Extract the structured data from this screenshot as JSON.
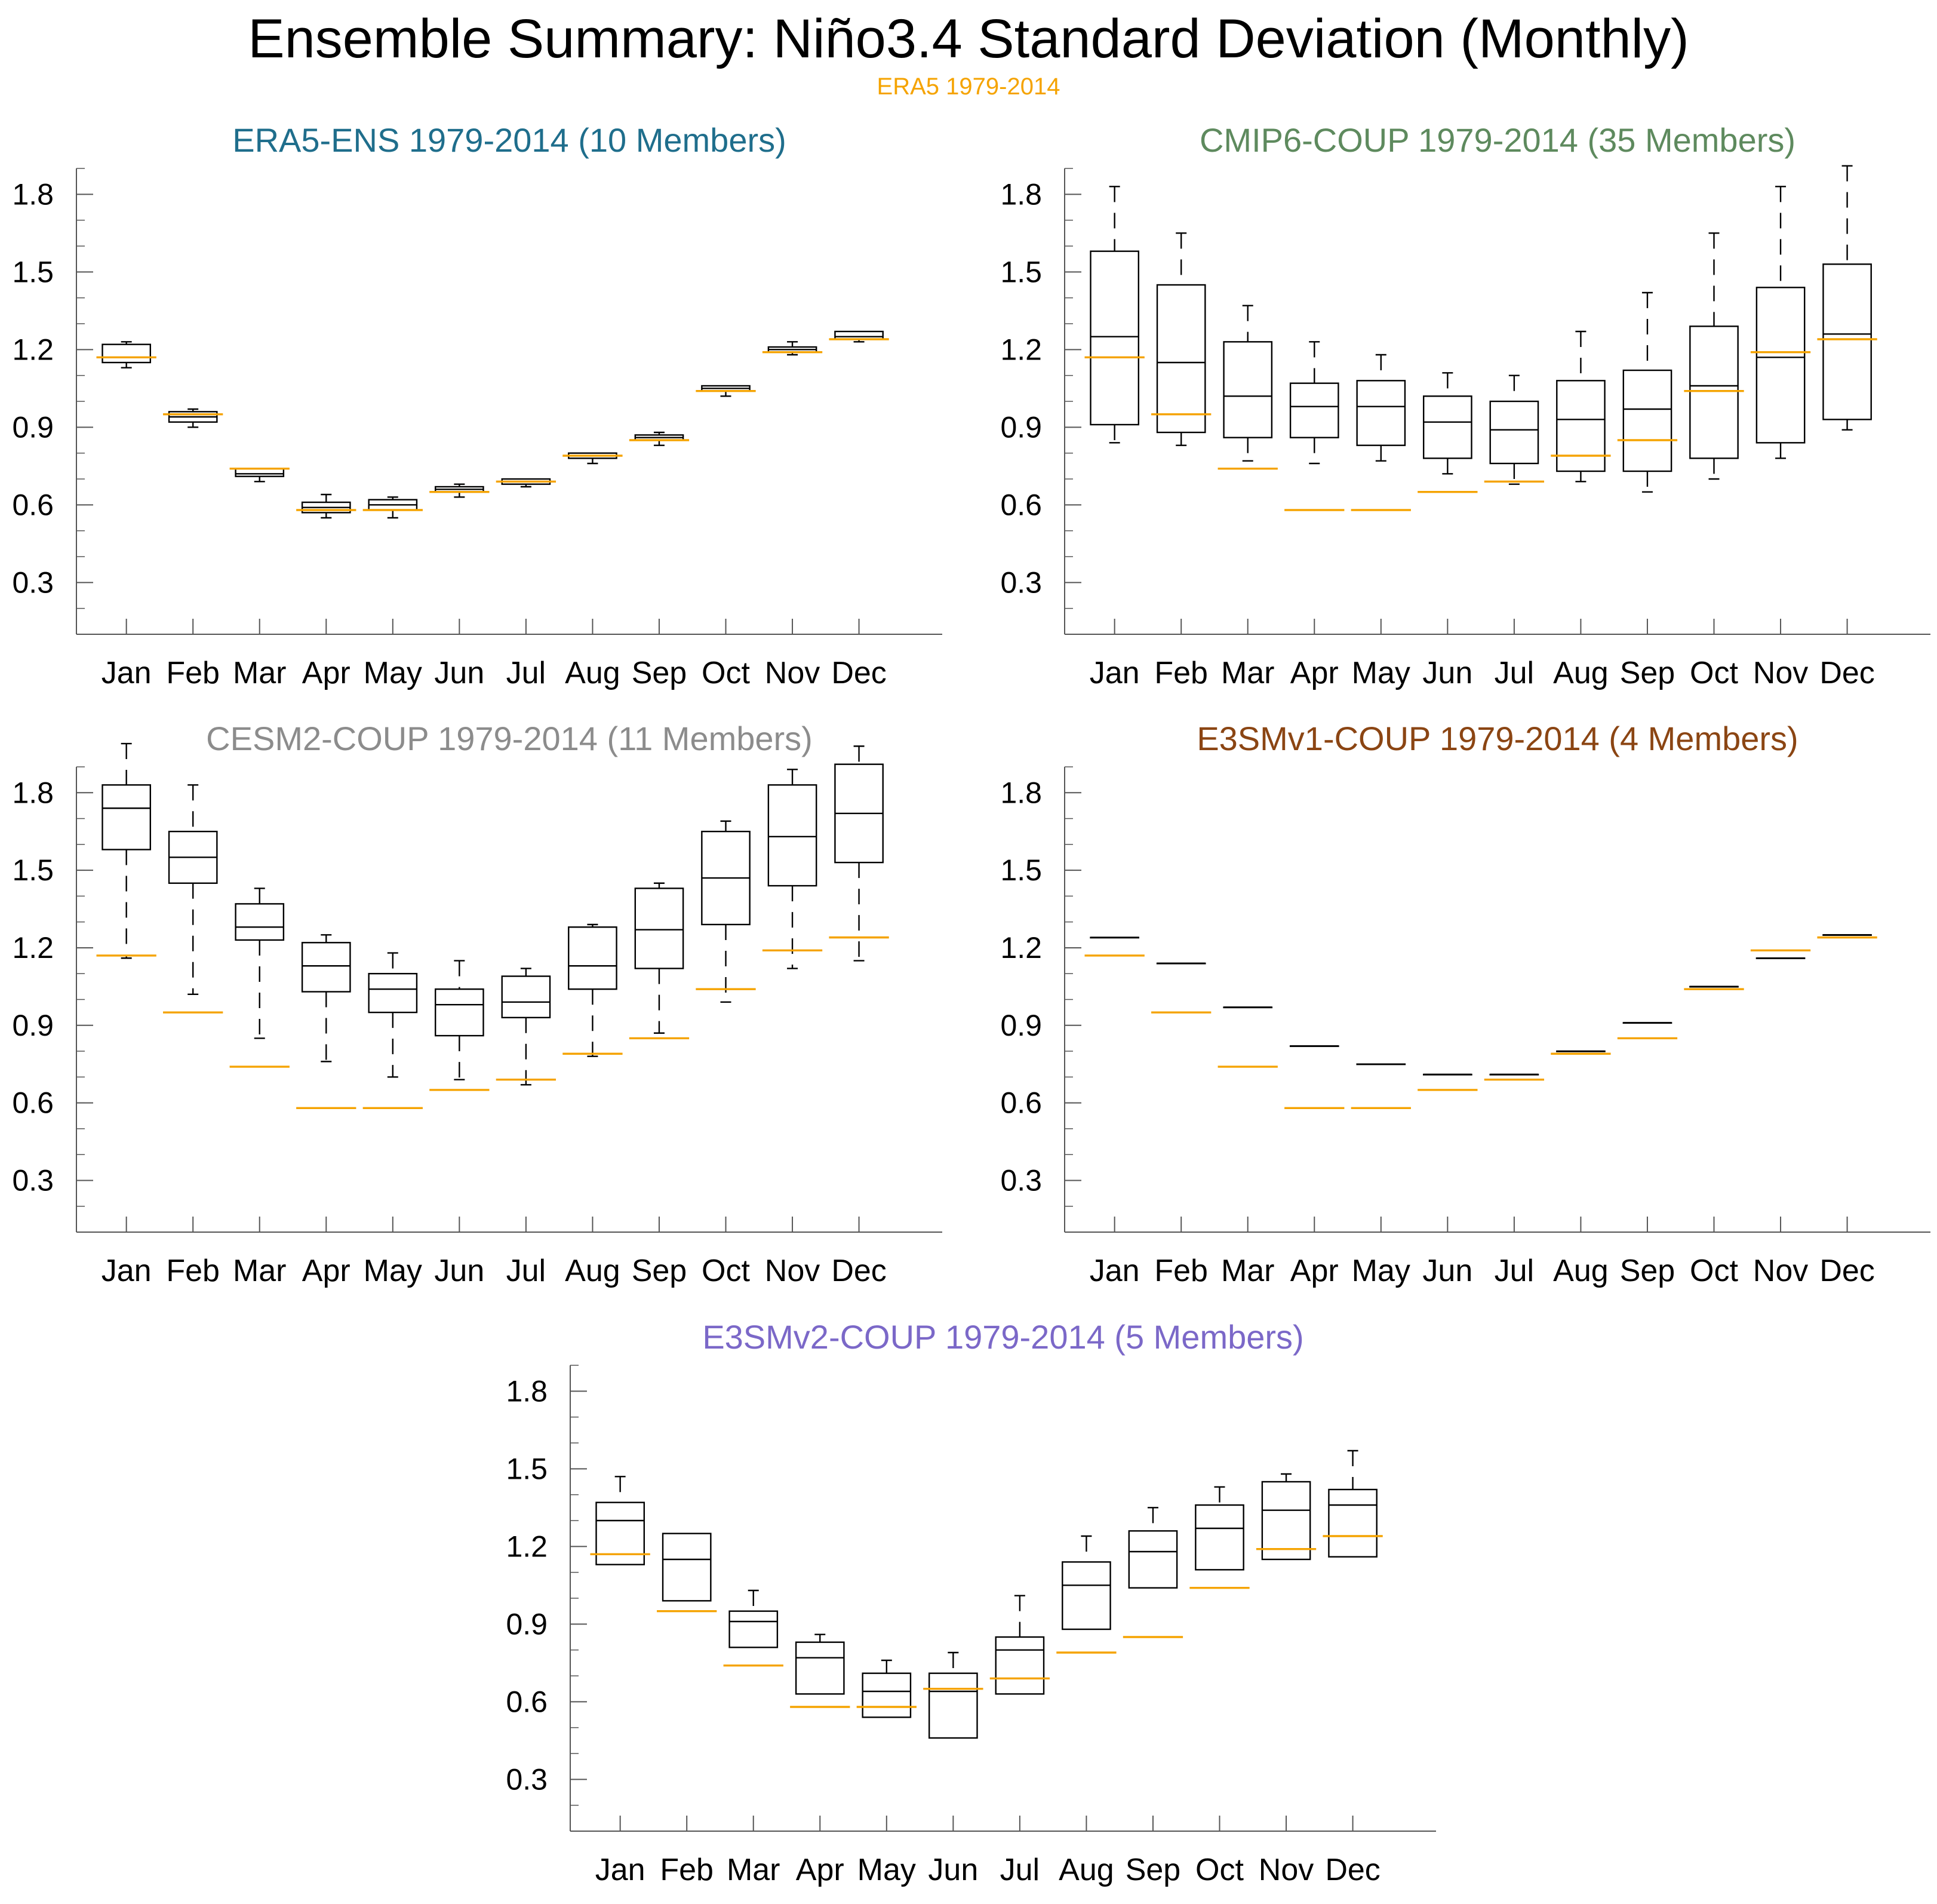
{
  "title": "Ensemble Summary: Niño3.4 Standard Deviation (Monthly)",
  "subtitle": "ERA5 1979-2014",
  "colors": {
    "reference": "#f5a300",
    "box": "#000000",
    "axis": "#555555"
  },
  "chart_data": [
    {
      "type": "box",
      "title": "ERA5-ENS 1979-2014 (10 Members)",
      "title_color": "#1f6e8c",
      "categories": [
        "Jan",
        "Feb",
        "Mar",
        "Apr",
        "May",
        "Jun",
        "Jul",
        "Aug",
        "Sep",
        "Oct",
        "Nov",
        "Dec"
      ],
      "yticks": [
        "0.3",
        "0.6",
        "0.9",
        "1.2",
        "1.5",
        "1.8"
      ],
      "ylim": [
        0.1,
        1.9
      ],
      "boxes": [
        {
          "min": 1.13,
          "q1": 1.15,
          "median": 1.17,
          "q3": 1.22,
          "max": 1.23
        },
        {
          "min": 0.9,
          "q1": 0.92,
          "median": 0.94,
          "q3": 0.96,
          "max": 0.97
        },
        {
          "min": 0.69,
          "q1": 0.71,
          "median": 0.72,
          "q3": 0.74,
          "max": 0.74
        },
        {
          "min": 0.55,
          "q1": 0.57,
          "median": 0.59,
          "q3": 0.61,
          "max": 0.64
        },
        {
          "min": 0.55,
          "q1": 0.58,
          "median": 0.6,
          "q3": 0.62,
          "max": 0.63
        },
        {
          "min": 0.63,
          "q1": 0.65,
          "median": 0.66,
          "q3": 0.67,
          "max": 0.68
        },
        {
          "min": 0.67,
          "q1": 0.68,
          "median": 0.69,
          "q3": 0.7,
          "max": 0.7
        },
        {
          "min": 0.76,
          "q1": 0.78,
          "median": 0.79,
          "q3": 0.8,
          "max": 0.8
        },
        {
          "min": 0.83,
          "q1": 0.85,
          "median": 0.86,
          "q3": 0.87,
          "max": 0.88
        },
        {
          "min": 1.02,
          "q1": 1.04,
          "median": 1.05,
          "q3": 1.06,
          "max": 1.06
        },
        {
          "min": 1.18,
          "q1": 1.19,
          "median": 1.2,
          "q3": 1.21,
          "max": 1.23
        },
        {
          "min": 1.23,
          "q1": 1.24,
          "median": 1.25,
          "q3": 1.27,
          "max": 1.27
        }
      ],
      "reference": [
        1.17,
        0.95,
        0.74,
        0.58,
        0.58,
        0.65,
        0.69,
        0.79,
        0.85,
        1.04,
        1.19,
        1.24
      ]
    },
    {
      "type": "box",
      "title": "CMIP6-COUP 1979-2014 (35 Members)",
      "title_color": "#5e8a5e",
      "categories": [
        "Jan",
        "Feb",
        "Mar",
        "Apr",
        "May",
        "Jun",
        "Jul",
        "Aug",
        "Sep",
        "Oct",
        "Nov",
        "Dec"
      ],
      "yticks": [
        "0.3",
        "0.6",
        "0.9",
        "1.2",
        "1.5",
        "1.8"
      ],
      "ylim": [
        0.1,
        1.9
      ],
      "boxes": [
        {
          "min": 0.84,
          "q1": 0.91,
          "median": 1.25,
          "q3": 1.58,
          "max": 1.83
        },
        {
          "min": 0.83,
          "q1": 0.88,
          "median": 1.15,
          "q3": 1.45,
          "max": 1.65
        },
        {
          "min": 0.77,
          "q1": 0.86,
          "median": 1.02,
          "q3": 1.23,
          "max": 1.37
        },
        {
          "min": 0.76,
          "q1": 0.86,
          "median": 0.98,
          "q3": 1.07,
          "max": 1.23
        },
        {
          "min": 0.77,
          "q1": 0.83,
          "median": 0.98,
          "q3": 1.08,
          "max": 1.18
        },
        {
          "min": 0.72,
          "q1": 0.78,
          "median": 0.92,
          "q3": 1.02,
          "max": 1.11
        },
        {
          "min": 0.68,
          "q1": 0.76,
          "median": 0.89,
          "q3": 1.0,
          "max": 1.1
        },
        {
          "min": 0.69,
          "q1": 0.73,
          "median": 0.93,
          "q3": 1.08,
          "max": 1.27
        },
        {
          "min": 0.65,
          "q1": 0.73,
          "median": 0.97,
          "q3": 1.12,
          "max": 1.42
        },
        {
          "min": 0.7,
          "q1": 0.78,
          "median": 1.06,
          "q3": 1.29,
          "max": 1.65
        },
        {
          "min": 0.78,
          "q1": 0.84,
          "median": 1.17,
          "q3": 1.44,
          "max": 1.83
        },
        {
          "min": 0.89,
          "q1": 0.93,
          "median": 1.26,
          "q3": 1.53,
          "max": 1.91
        }
      ],
      "reference": [
        1.17,
        0.95,
        0.74,
        0.58,
        0.58,
        0.65,
        0.69,
        0.79,
        0.85,
        1.04,
        1.19,
        1.24
      ]
    },
    {
      "type": "box",
      "title": "CESM2-COUP 1979-2014 (11 Members)",
      "title_color": "#8c8c8c",
      "categories": [
        "Jan",
        "Feb",
        "Mar",
        "Apr",
        "May",
        "Jun",
        "Jul",
        "Aug",
        "Sep",
        "Oct",
        "Nov",
        "Dec"
      ],
      "yticks": [
        "0.3",
        "0.6",
        "0.9",
        "1.2",
        "1.5",
        "1.8"
      ],
      "ylim": [
        0.1,
        1.9
      ],
      "boxes": [
        {
          "min": 1.16,
          "q1": 1.58,
          "median": 1.74,
          "q3": 1.83,
          "max": 1.99
        },
        {
          "min": 1.02,
          "q1": 1.45,
          "median": 1.55,
          "q3": 1.65,
          "max": 1.83
        },
        {
          "min": 0.85,
          "q1": 1.23,
          "median": 1.28,
          "q3": 1.37,
          "max": 1.43
        },
        {
          "min": 0.76,
          "q1": 1.03,
          "median": 1.13,
          "q3": 1.22,
          "max": 1.25
        },
        {
          "min": 0.7,
          "q1": 0.95,
          "median": 1.04,
          "q3": 1.1,
          "max": 1.18
        },
        {
          "min": 0.69,
          "q1": 0.86,
          "median": 0.98,
          "q3": 1.04,
          "max": 1.15
        },
        {
          "min": 0.67,
          "q1": 0.93,
          "median": 0.99,
          "q3": 1.09,
          "max": 1.12
        },
        {
          "min": 0.78,
          "q1": 1.04,
          "median": 1.13,
          "q3": 1.28,
          "max": 1.29
        },
        {
          "min": 0.87,
          "q1": 1.12,
          "median": 1.27,
          "q3": 1.43,
          "max": 1.45
        },
        {
          "min": 0.99,
          "q1": 1.29,
          "median": 1.47,
          "q3": 1.65,
          "max": 1.69
        },
        {
          "min": 1.12,
          "q1": 1.44,
          "median": 1.63,
          "q3": 1.83,
          "max": 1.89
        },
        {
          "min": 1.15,
          "q1": 1.53,
          "median": 1.72,
          "q3": 1.91,
          "max": 1.98
        }
      ],
      "reference": [
        1.17,
        0.95,
        0.74,
        0.58,
        0.58,
        0.65,
        0.69,
        0.79,
        0.85,
        1.04,
        1.19,
        1.24
      ]
    },
    {
      "type": "box",
      "title": "E3SMv1-COUP 1979-2014 (4 Members)",
      "title_color": "#8b4513",
      "categories": [
        "Jan",
        "Feb",
        "Mar",
        "Apr",
        "May",
        "Jun",
        "Jul",
        "Aug",
        "Sep",
        "Oct",
        "Nov",
        "Dec"
      ],
      "yticks": [
        "0.3",
        "0.6",
        "0.9",
        "1.2",
        "1.5",
        "1.8"
      ],
      "ylim": [
        0.1,
        1.9
      ],
      "boxes": [
        {
          "min": 1.24,
          "q1": 1.24,
          "median": 1.24,
          "q3": 1.24,
          "max": 1.24
        },
        {
          "min": 1.14,
          "q1": 1.14,
          "median": 1.14,
          "q3": 1.14,
          "max": 1.14
        },
        {
          "min": 0.97,
          "q1": 0.97,
          "median": 0.97,
          "q3": 0.97,
          "max": 0.97
        },
        {
          "min": 0.82,
          "q1": 0.82,
          "median": 0.82,
          "q3": 0.82,
          "max": 0.82
        },
        {
          "min": 0.75,
          "q1": 0.75,
          "median": 0.75,
          "q3": 0.75,
          "max": 0.75
        },
        {
          "min": 0.71,
          "q1": 0.71,
          "median": 0.71,
          "q3": 0.71,
          "max": 0.71
        },
        {
          "min": 0.71,
          "q1": 0.71,
          "median": 0.71,
          "q3": 0.71,
          "max": 0.71
        },
        {
          "min": 0.8,
          "q1": 0.8,
          "median": 0.8,
          "q3": 0.8,
          "max": 0.8
        },
        {
          "min": 0.91,
          "q1": 0.91,
          "median": 0.91,
          "q3": 0.91,
          "max": 0.91
        },
        {
          "min": 1.05,
          "q1": 1.05,
          "median": 1.05,
          "q3": 1.05,
          "max": 1.05
        },
        {
          "min": 1.16,
          "q1": 1.16,
          "median": 1.16,
          "q3": 1.16,
          "max": 1.16
        },
        {
          "min": 1.25,
          "q1": 1.25,
          "median": 1.25,
          "q3": 1.25,
          "max": 1.25
        }
      ],
      "reference": [
        1.17,
        0.95,
        0.74,
        0.58,
        0.58,
        0.65,
        0.69,
        0.79,
        0.85,
        1.04,
        1.19,
        1.24
      ]
    },
    {
      "type": "box",
      "title": "E3SMv2-COUP 1979-2014 (5 Members)",
      "title_color": "#7b68c8",
      "categories": [
        "Jan",
        "Feb",
        "Mar",
        "Apr",
        "May",
        "Jun",
        "Jul",
        "Aug",
        "Sep",
        "Oct",
        "Nov",
        "Dec"
      ],
      "yticks": [
        "0.3",
        "0.6",
        "0.9",
        "1.2",
        "1.5",
        "1.8"
      ],
      "ylim": [
        0.1,
        1.9
      ],
      "boxes": [
        {
          "min": 1.13,
          "q1": 1.13,
          "median": 1.3,
          "q3": 1.37,
          "max": 1.47
        },
        {
          "min": 0.99,
          "q1": 0.99,
          "median": 1.15,
          "q3": 1.25,
          "max": 1.25
        },
        {
          "min": 0.81,
          "q1": 0.81,
          "median": 0.91,
          "q3": 0.95,
          "max": 1.03
        },
        {
          "min": 0.63,
          "q1": 0.63,
          "median": 0.77,
          "q3": 0.83,
          "max": 0.86
        },
        {
          "min": 0.54,
          "q1": 0.54,
          "median": 0.64,
          "q3": 0.71,
          "max": 0.76
        },
        {
          "min": 0.46,
          "q1": 0.46,
          "median": 0.64,
          "q3": 0.71,
          "max": 0.79
        },
        {
          "min": 0.63,
          "q1": 0.63,
          "median": 0.8,
          "q3": 0.85,
          "max": 1.01
        },
        {
          "min": 0.88,
          "q1": 0.88,
          "median": 1.05,
          "q3": 1.14,
          "max": 1.24
        },
        {
          "min": 1.04,
          "q1": 1.04,
          "median": 1.18,
          "q3": 1.26,
          "max": 1.35
        },
        {
          "min": 1.11,
          "q1": 1.11,
          "median": 1.27,
          "q3": 1.36,
          "max": 1.43
        },
        {
          "min": 1.15,
          "q1": 1.15,
          "median": 1.34,
          "q3": 1.45,
          "max": 1.48
        },
        {
          "min": 1.16,
          "q1": 1.16,
          "median": 1.36,
          "q3": 1.42,
          "max": 1.57
        }
      ],
      "reference": [
        1.17,
        0.95,
        0.74,
        0.58,
        0.58,
        0.65,
        0.69,
        0.79,
        0.85,
        1.04,
        1.19,
        1.24
      ]
    }
  ]
}
